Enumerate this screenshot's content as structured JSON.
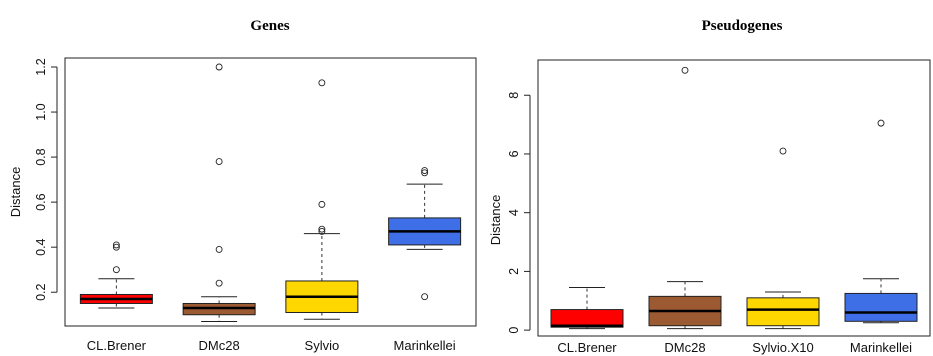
{
  "chart_data": [
    {
      "type": "box",
      "title": "Genes",
      "ylabel": "Distance",
      "xlabel": "",
      "ylim": [
        0.05,
        1.24
      ],
      "yticks": [
        0.2,
        0.4,
        0.6,
        0.8,
        1.0,
        1.2
      ],
      "ytick_labels": [
        "0.2",
        "0.4",
        "0.6",
        "0.8",
        "1.0",
        "1.2"
      ],
      "grid": false,
      "categories": [
        "CL.Brener",
        "DMc28",
        "Sylvio",
        "Marinkellei"
      ],
      "colors": [
        "#ff0000",
        "#9c5a32",
        "#ffd700",
        "#3f6fe6"
      ],
      "boxes": [
        {
          "whisker_low": 0.13,
          "q1": 0.15,
          "median": 0.17,
          "q3": 0.19,
          "whisker_high": 0.26,
          "outliers": [
            0.3,
            0.4,
            0.41
          ]
        },
        {
          "whisker_low": 0.07,
          "q1": 0.1,
          "median": 0.13,
          "q3": 0.15,
          "whisker_high": 0.18,
          "outliers": [
            0.24,
            0.39,
            0.78,
            1.2
          ]
        },
        {
          "whisker_low": 0.08,
          "q1": 0.11,
          "median": 0.18,
          "q3": 0.25,
          "whisker_high": 0.46,
          "outliers": [
            0.47,
            0.48,
            0.59,
            1.13
          ]
        },
        {
          "whisker_low": 0.39,
          "q1": 0.41,
          "median": 0.47,
          "q3": 0.53,
          "whisker_high": 0.68,
          "outliers": [
            0.18,
            0.73,
            0.74
          ]
        }
      ]
    },
    {
      "type": "box",
      "title": "Pseudogenes",
      "ylabel": "Distance",
      "xlabel": "",
      "ylim": [
        -0.2,
        9.2
      ],
      "yticks": [
        0,
        2,
        4,
        6,
        8
      ],
      "ytick_labels": [
        "0",
        "2",
        "4",
        "6",
        "8"
      ],
      "grid": false,
      "categories": [
        "CL.Brener",
        "DMc28",
        "Sylvio.X10",
        "Marinkellei"
      ],
      "colors": [
        "#ff0000",
        "#9c5a32",
        "#ffd700",
        "#3f6fe6"
      ],
      "boxes": [
        {
          "whisker_low": 0.05,
          "q1": 0.1,
          "median": 0.15,
          "q3": 0.7,
          "whisker_high": 1.45,
          "outliers": []
        },
        {
          "whisker_low": 0.05,
          "q1": 0.15,
          "median": 0.65,
          "q3": 1.15,
          "whisker_high": 1.65,
          "outliers": [
            8.85
          ]
        },
        {
          "whisker_low": 0.05,
          "q1": 0.15,
          "median": 0.7,
          "q3": 1.1,
          "whisker_high": 1.3,
          "outliers": [
            6.1
          ]
        },
        {
          "whisker_low": 0.25,
          "q1": 0.3,
          "median": 0.6,
          "q3": 1.25,
          "whisker_high": 1.75,
          "outliers": [
            7.05
          ]
        }
      ]
    }
  ]
}
